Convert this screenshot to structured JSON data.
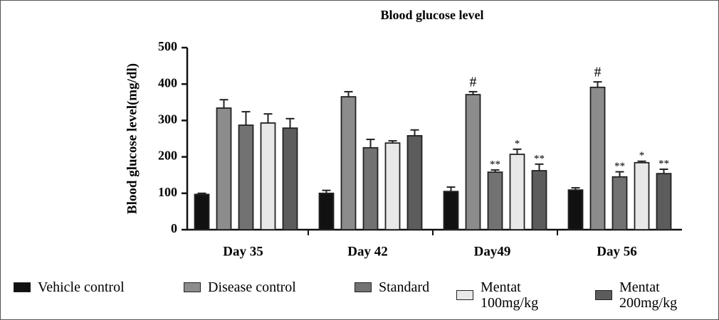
{
  "chart_data": {
    "type": "bar",
    "title": "Blood glucose level",
    "y_label": "Blood glucose level(mg/dl)",
    "categories": [
      "Day 35",
      "Day 42",
      "Day49",
      "Day 56"
    ],
    "ylim": [
      0,
      500
    ],
    "yticks": [
      0,
      100,
      200,
      300,
      400,
      500
    ],
    "grid": false,
    "series": [
      {
        "name": "Vehicle control",
        "color": "#111111",
        "values": [
          97,
          100,
          105,
          109
        ],
        "errors": [
          3,
          8,
          12,
          6
        ],
        "annotations": [
          null,
          null,
          null,
          null
        ]
      },
      {
        "name": "Disease control",
        "color": "#8c8c8c",
        "values": [
          334,
          365,
          371,
          391
        ],
        "errors": [
          23,
          14,
          8,
          15
        ],
        "annotations": [
          null,
          null,
          "#",
          "#"
        ]
      },
      {
        "name": "Standard",
        "color": "#727272",
        "values": [
          287,
          225,
          158,
          145
        ],
        "errors": [
          37,
          23,
          6,
          14
        ],
        "annotations": [
          null,
          null,
          "**",
          "**"
        ]
      },
      {
        "name": "Mentat 100mg/kg",
        "color": "#e8e8e8",
        "values": [
          293,
          238,
          207,
          184
        ],
        "errors": [
          25,
          6,
          14,
          4
        ],
        "annotations": [
          null,
          null,
          "*",
          "*"
        ]
      },
      {
        "name": "Mentat 200mg/kg",
        "color": "#5c5c5c",
        "values": [
          279,
          258,
          162,
          154
        ],
        "errors": [
          26,
          16,
          18,
          12
        ],
        "annotations": [
          null,
          null,
          "**",
          "**"
        ]
      }
    ]
  }
}
